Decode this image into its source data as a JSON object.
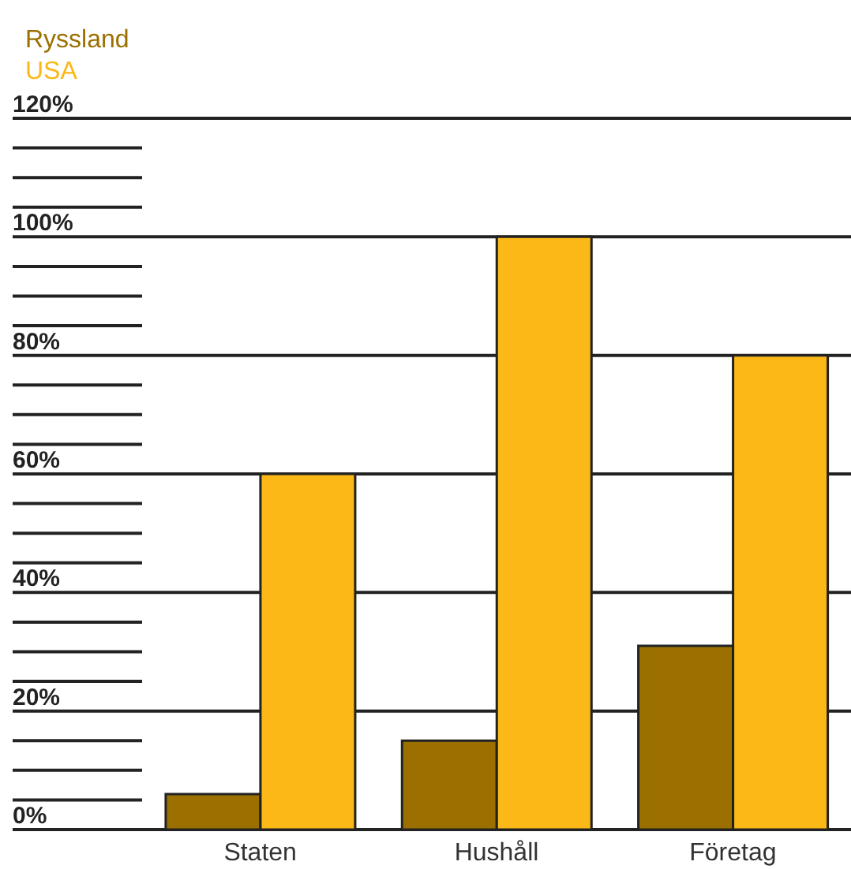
{
  "chart_data": {
    "type": "bar",
    "categories": [
      "Staten",
      "Hushåll",
      "Företag"
    ],
    "series": [
      {
        "name": "Ryssland",
        "color": "#9b7000",
        "values": [
          6,
          15,
          31
        ]
      },
      {
        "name": "USA",
        "color": "#fbb817",
        "values": [
          60,
          100,
          80
        ]
      }
    ],
    "ylim": [
      0,
      120
    ],
    "yticks": [
      {
        "value": 0,
        "label": "0%"
      },
      {
        "value": 20,
        "label": "20%"
      },
      {
        "value": 40,
        "label": "40%"
      },
      {
        "value": 60,
        "label": "60%"
      },
      {
        "value": 80,
        "label": "80%"
      },
      {
        "value": 100,
        "label": "100%"
      },
      {
        "value": 120,
        "label": "120%"
      }
    ],
    "grid": "y",
    "legend": "top left"
  }
}
